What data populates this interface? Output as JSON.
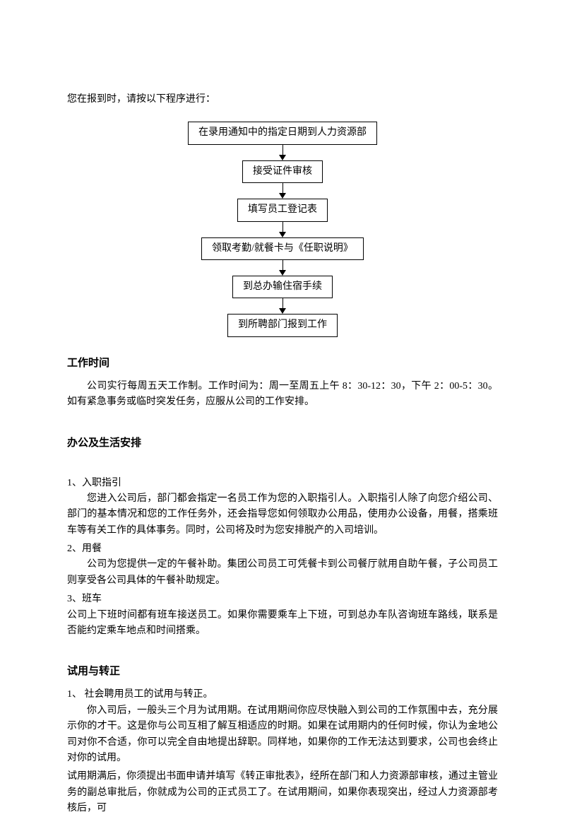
{
  "intro": "您在报到时，请按以下程序进行：",
  "flowchart": {
    "type": "flowchart",
    "nodes": [
      "在录用通知中的指定日期到人力资源部",
      "接受证件审核",
      "填写员工登记表",
      "领取考勤/就餐卡与《任职说明》",
      "到总办输住宿手续",
      "到所聘部门报到工作"
    ],
    "box_border_color": "#000000",
    "box_bg_color": "#ffffff",
    "arrow_color": "#000000",
    "font_size": 14
  },
  "sections": {
    "work_hours": {
      "heading": "工作时间",
      "body": "公司实行每周五天工作制。工作时间为：周一至周五上午 8：30-12：30，下午 2：00-5：30。如有紧急事务或临时突发任务，应服从公司的工作安排。"
    },
    "office_life": {
      "heading": "办公及生活安排",
      "items": {
        "item1": {
          "num": "1、入职指引",
          "body": "您进入公司后，部门都会指定一名员工作为您的入职指引人。入职指引人除了向您介绍公司、部门的基本情况和您的工作任务外，还会指导您如何领取办公用品，使用办公设备，用餐，搭乘班车等有关工作的具体事务。同时，公司将及时为您安排脱产的入司培训。"
        },
        "item2": {
          "num": "2、用餐",
          "body": "公司为您提供一定的午餐补助。集团公司员工可凭餐卡到公司餐厅就用自助午餐，子公司员工则享受各公司具体的午餐补助规定。"
        },
        "item3": {
          "num": " 3、班车",
          "body": "公司上下班时间都有班车接送员工。如果你需要乘车上下班，可到总办车队咨询班车路线，联系是否能约定乘车地点和时间搭乘。"
        }
      }
    },
    "probation": {
      "heading": "试用与转正",
      "item1_num": "1、 社会聘用员工的试用与转正。",
      "item1_body1": "你入司后，一般头三个月为试用期。在试用期间你应尽快融入到公司的工作氛围中去，充分展示你的才干。这是你与公司互相了解互相适应的时期。如果在试用期内的任何时候，你认为金地公司对你不合适，你可以完全自由地提出辞职。同样地，如果你的工作无法达到要求，公司也会终止对你的试用。",
      "item1_body2": "试用期满后，你须提出书面申请并填写《转正审批表》，经所在部门和人力资源部审核，通过主管业务的副总审批后，你就成为公司的正式员工了。在试用期间，如果你表现突出，经过人力资源部考核后，可"
    }
  }
}
